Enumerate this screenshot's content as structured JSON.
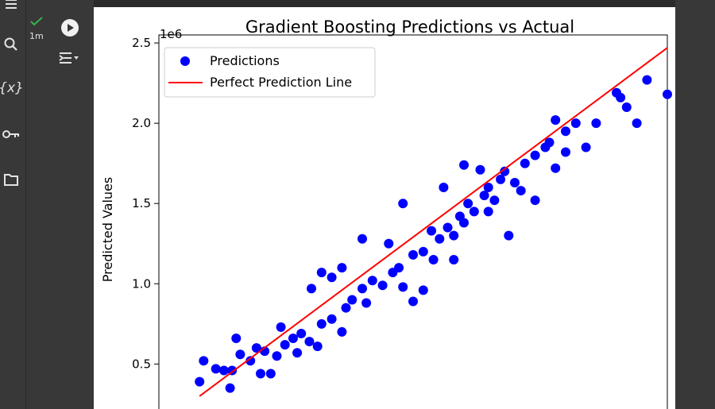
{
  "cell": {
    "status_time": "1m",
    "status": "success"
  },
  "sidebar": {
    "icons": [
      "menu-icon",
      "search-icon",
      "variables-icon",
      "key-icon",
      "folder-icon"
    ],
    "variables_glyph": "{x}"
  },
  "chart_data": {
    "type": "scatter",
    "title": "Gradient Boosting Predictions vs Actual",
    "xlabel": "",
    "ylabel": "Predicted Values",
    "y_offset_label": "1e6",
    "y_scale": 1000000,
    "ylim": [
      0.2,
      2.55
    ],
    "xlim": [
      0.1,
      2.6
    ],
    "yticks": [
      0.5,
      1.0,
      1.5,
      2.0,
      2.5
    ],
    "ytick_labels": [
      "0.5",
      "1.0",
      "1.5",
      "2.0",
      "2.5"
    ],
    "legend": {
      "placement": "top-left",
      "entries": [
        "Predictions",
        "Perfect Prediction Line"
      ]
    },
    "series": [
      {
        "name": "Predictions",
        "kind": "scatter",
        "color": "#0000ff",
        "points": [
          [
            0.3,
            0.39
          ],
          [
            0.32,
            0.52
          ],
          [
            0.38,
            0.47
          ],
          [
            0.42,
            0.46
          ],
          [
            0.46,
            0.46
          ],
          [
            0.45,
            0.35
          ],
          [
            0.55,
            0.52
          ],
          [
            0.58,
            0.6
          ],
          [
            0.6,
            0.44
          ],
          [
            0.65,
            0.44
          ],
          [
            0.68,
            0.55
          ],
          [
            0.72,
            0.62
          ],
          [
            0.76,
            0.66
          ],
          [
            0.8,
            0.69
          ],
          [
            0.84,
            0.64
          ],
          [
            0.88,
            0.61
          ],
          [
            0.9,
            0.75
          ],
          [
            0.95,
            0.78
          ],
          [
            1.0,
            0.7
          ],
          [
            1.02,
            0.85
          ],
          [
            1.05,
            0.9
          ],
          [
            1.1,
            0.97
          ],
          [
            1.12,
            0.88
          ],
          [
            1.15,
            1.02
          ],
          [
            1.2,
            0.99
          ],
          [
            1.25,
            1.07
          ],
          [
            1.28,
            1.1
          ],
          [
            1.3,
            0.98
          ],
          [
            1.35,
            1.18
          ],
          [
            1.4,
            1.2
          ],
          [
            1.45,
            1.15
          ],
          [
            1.48,
            1.28
          ],
          [
            1.52,
            1.35
          ],
          [
            1.55,
            1.3
          ],
          [
            1.58,
            1.42
          ],
          [
            1.6,
            1.38
          ],
          [
            1.62,
            1.5
          ],
          [
            1.65,
            1.45
          ],
          [
            1.7,
            1.55
          ],
          [
            1.72,
            1.6
          ],
          [
            1.75,
            1.52
          ],
          [
            1.78,
            1.65
          ],
          [
            1.8,
            1.7
          ],
          [
            1.85,
            1.63
          ],
          [
            1.9,
            1.75
          ],
          [
            1.95,
            1.8
          ],
          [
            2.0,
            1.85
          ],
          [
            2.05,
            2.02
          ],
          [
            2.1,
            1.95
          ],
          [
            2.15,
            2.0
          ],
          [
            2.35,
            2.19
          ],
          [
            2.37,
            2.16
          ],
          [
            2.45,
            2.0
          ],
          [
            2.5,
            2.27
          ],
          [
            2.6,
            2.18
          ],
          [
            2.4,
            2.1
          ],
          [
            2.2,
            1.85
          ],
          [
            2.05,
            1.72
          ],
          [
            1.5,
            1.6
          ],
          [
            1.35,
            0.89
          ],
          [
            1.4,
            0.96
          ],
          [
            1.0,
            1.1
          ],
          [
            0.85,
            0.97
          ],
          [
            0.9,
            1.07
          ],
          [
            1.55,
            1.15
          ],
          [
            1.82,
            1.3
          ],
          [
            1.95,
            1.52
          ],
          [
            2.02,
            1.88
          ],
          [
            1.68,
            1.71
          ],
          [
            1.6,
            1.74
          ],
          [
            1.3,
            1.5
          ],
          [
            1.1,
            1.28
          ],
          [
            0.95,
            1.04
          ],
          [
            0.7,
            0.73
          ],
          [
            0.62,
            0.58
          ],
          [
            0.5,
            0.56
          ],
          [
            0.48,
            0.66
          ],
          [
            0.78,
            0.57
          ],
          [
            1.23,
            1.25
          ],
          [
            1.44,
            1.33
          ],
          [
            1.72,
            1.45
          ],
          [
            1.88,
            1.58
          ],
          [
            2.1,
            1.82
          ],
          [
            2.25,
            2.0
          ]
        ]
      },
      {
        "name": "Perfect Prediction Line",
        "kind": "line",
        "color": "#ff0000",
        "x": [
          0.3,
          2.6
        ],
        "y": [
          0.3,
          2.47
        ]
      }
    ]
  }
}
